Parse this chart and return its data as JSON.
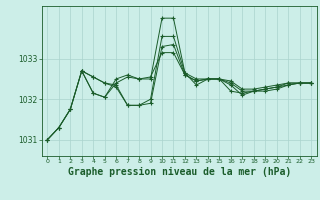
{
  "background_color": "#cceee8",
  "grid_color": "#aad4ce",
  "line_color": "#1a5c2a",
  "xlabel": "Graphe pression niveau de la mer (hPa)",
  "xlim": [
    -0.5,
    23.5
  ],
  "ylim": [
    1030.6,
    1034.3
  ],
  "yticks": [
    1031,
    1032,
    1033
  ],
  "xticks": [
    0,
    1,
    2,
    3,
    4,
    5,
    6,
    7,
    8,
    9,
    10,
    11,
    12,
    13,
    14,
    15,
    16,
    17,
    18,
    19,
    20,
    21,
    22,
    23
  ],
  "lines": [
    {
      "x": [
        0,
        1,
        2,
        3,
        4,
        5,
        6,
        7,
        8,
        9,
        10,
        11,
        12,
        13,
        14,
        15,
        16,
        17,
        18,
        19,
        20,
        21,
        22,
        23
      ],
      "y": [
        1031.0,
        1031.3,
        1031.75,
        1032.7,
        1032.55,
        1032.4,
        1032.35,
        1031.85,
        1031.85,
        1031.9,
        1033.3,
        1033.35,
        1032.6,
        1032.45,
        1032.5,
        1032.5,
        1032.45,
        1032.25,
        1032.25,
        1032.3,
        1032.35,
        1032.4,
        1032.4,
        1032.4
      ]
    },
    {
      "x": [
        0,
        1,
        2,
        3,
        4,
        5,
        6,
        7,
        8,
        9,
        10,
        11,
        12,
        13,
        14,
        15,
        16,
        17,
        18,
        19,
        20,
        21,
        22,
        23
      ],
      "y": [
        1031.0,
        1031.3,
        1031.75,
        1032.7,
        1032.15,
        1032.05,
        1032.5,
        1032.6,
        1032.5,
        1032.5,
        1034.0,
        1034.0,
        1032.65,
        1032.5,
        1032.5,
        1032.5,
        1032.2,
        1032.15,
        1032.2,
        1032.25,
        1032.3,
        1032.4,
        1032.4,
        1032.4
      ]
    },
    {
      "x": [
        0,
        1,
        2,
        3,
        4,
        5,
        6,
        7,
        8,
        9,
        10,
        11,
        12,
        13,
        14,
        15,
        16,
        17,
        18,
        19,
        20,
        21,
        22,
        23
      ],
      "y": [
        1031.0,
        1031.3,
        1031.75,
        1032.7,
        1032.55,
        1032.4,
        1032.3,
        1031.85,
        1031.85,
        1032.0,
        1033.55,
        1033.55,
        1032.65,
        1032.35,
        1032.5,
        1032.5,
        1032.4,
        1032.2,
        1032.2,
        1032.25,
        1032.3,
        1032.35,
        1032.4,
        1032.4
      ]
    },
    {
      "x": [
        3,
        4,
        5,
        6,
        7,
        8,
        9,
        10,
        11,
        12,
        13,
        14,
        15,
        16,
        17,
        18,
        19,
        20,
        21,
        22,
        23
      ],
      "y": [
        1032.7,
        1032.15,
        1032.05,
        1032.4,
        1032.55,
        1032.5,
        1032.55,
        1033.15,
        1033.15,
        1032.6,
        1032.45,
        1032.5,
        1032.5,
        1032.35,
        1032.1,
        1032.2,
        1032.2,
        1032.25,
        1032.35,
        1032.4,
        1032.4
      ]
    }
  ]
}
